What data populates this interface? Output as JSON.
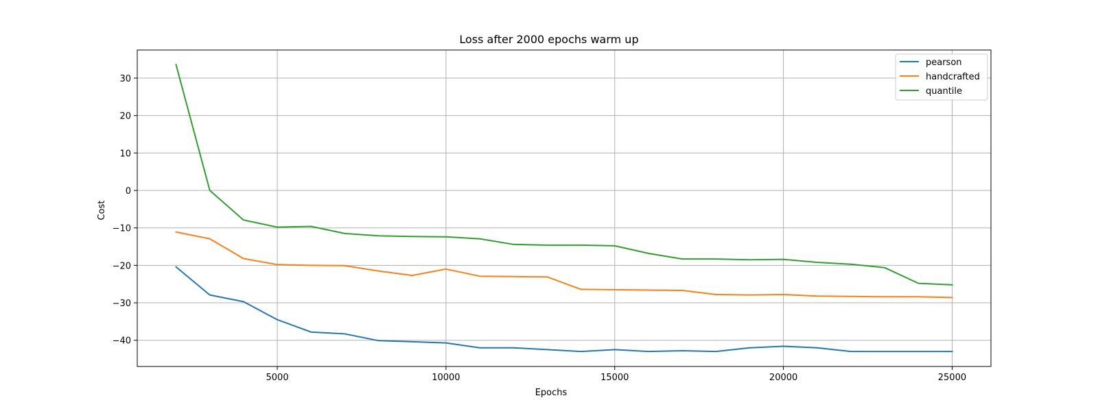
{
  "chart_data": {
    "type": "line",
    "title": "Loss after 2000 epochs warm up",
    "xlabel": "Epochs",
    "ylabel": "Cost",
    "xlim": [
      850,
      26150
    ],
    "ylim": [
      -47,
      37.5
    ],
    "xticks": [
      5000,
      10000,
      15000,
      20000,
      25000
    ],
    "yticks": [
      -40,
      -30,
      -20,
      -10,
      0,
      10,
      20,
      30
    ],
    "grid": true,
    "legend_position": "top-right",
    "x": [
      2000,
      3000,
      4000,
      5000,
      6000,
      7000,
      8000,
      9000,
      10000,
      11000,
      12000,
      13000,
      14000,
      15000,
      16000,
      17000,
      18000,
      19000,
      20000,
      21000,
      22000,
      23000,
      24000,
      25000
    ],
    "series": [
      {
        "name": "pearson",
        "color": "#1f77b4",
        "values": [
          -20.4,
          -27.9,
          -29.7,
          -34.5,
          -37.8,
          -38.3,
          -40.1,
          -40.4,
          -40.7,
          -42.0,
          -42.0,
          -42.5,
          -43.0,
          -42.5,
          -43.0,
          -42.8,
          -43.0,
          -42.0,
          -41.6,
          -42.0,
          -43.0,
          -43.0,
          -43.0,
          -43.0
        ]
      },
      {
        "name": "handcrafted",
        "color": "#ff7f0e",
        "values": [
          -11.1,
          -12.9,
          -18.2,
          -19.8,
          -20.0,
          -20.1,
          -21.5,
          -22.7,
          -21.0,
          -22.9,
          -23.0,
          -23.1,
          -26.4,
          -26.5,
          -26.6,
          -26.7,
          -27.8,
          -27.9,
          -27.8,
          -28.2,
          -28.3,
          -28.4,
          -28.4,
          -28.6
        ]
      },
      {
        "name": "quantile",
        "color": "#2ca02c",
        "values": [
          33.6,
          0.0,
          -7.9,
          -9.8,
          -9.6,
          -11.5,
          -12.1,
          -12.3,
          -12.4,
          -12.9,
          -14.4,
          -14.6,
          -14.6,
          -14.8,
          -16.8,
          -18.3,
          -18.3,
          -18.5,
          -18.4,
          -19.2,
          -19.7,
          -20.6,
          -24.8,
          -25.2
        ]
      }
    ]
  }
}
